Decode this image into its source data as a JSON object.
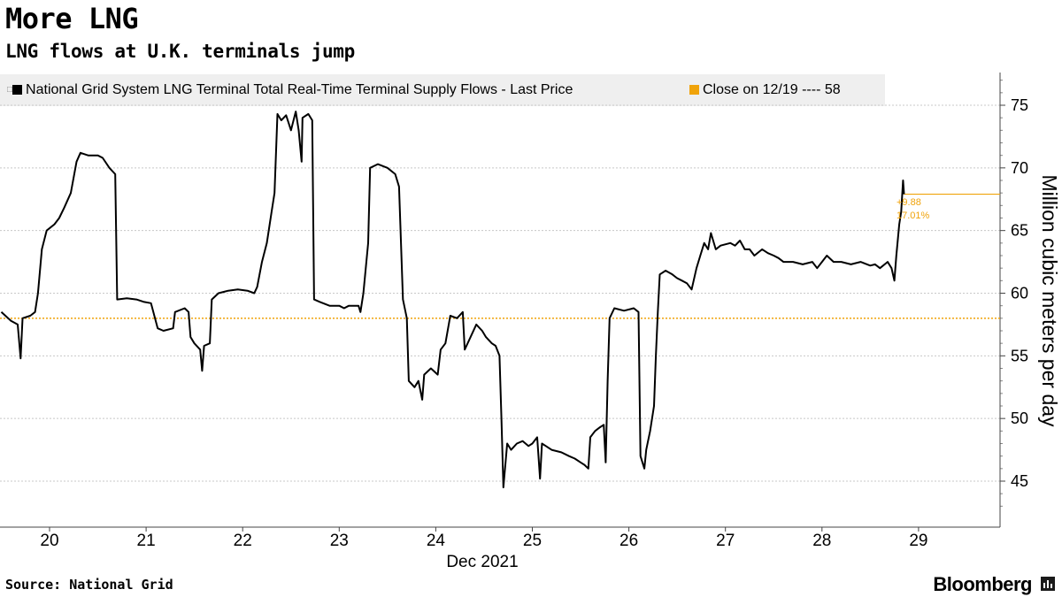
{
  "title": "More LNG",
  "subtitle": "LNG flows at U.K. terminals jump",
  "legend": {
    "series_label": "National Grid System LNG Terminal Total Real-Time Terminal Supply Flows - Last Price",
    "close_label": "Close on 12/19 ---- 58"
  },
  "annotations": {
    "change_abs": "+9.88",
    "change_pct": "17.01%"
  },
  "source": "Source:  National Grid",
  "brand": "Bloomberg",
  "colors": {
    "line": "#000000",
    "close": "#f0a30a",
    "grid": "#c8c8c8",
    "legend_bg": "#efefef"
  },
  "chart_data": {
    "type": "line",
    "title": "More LNG",
    "subtitle": "LNG flows at U.K. terminals jump",
    "ylabel": "Million cubic meters per day",
    "xlabel": "Dec 2021",
    "x_ticks": [
      "20",
      "21",
      "22",
      "23",
      "24",
      "25",
      "26",
      "27",
      "28",
      "29"
    ],
    "y_ticks": [
      45,
      50,
      55,
      60,
      65,
      70,
      75
    ],
    "ylim": [
      42,
      77
    ],
    "xlim": [
      19.5,
      29.8
    ],
    "reference_line": {
      "label": "Close on 12/19",
      "value": 58
    },
    "last_value": 67.9,
    "change": "+9.88",
    "change_pct": "17.01%",
    "series": [
      {
        "name": "National Grid System LNG Terminal Total Real-Time Terminal Supply Flows - Last Price",
        "points": [
          [
            19.5,
            58.5
          ],
          [
            19.6,
            57.8
          ],
          [
            19.67,
            57.5
          ],
          [
            19.7,
            54.8
          ],
          [
            19.72,
            58.0
          ],
          [
            19.8,
            58.2
          ],
          [
            19.85,
            58.5
          ],
          [
            19.88,
            60.0
          ],
          [
            19.92,
            63.5
          ],
          [
            19.97,
            65.0
          ],
          [
            20.05,
            65.5
          ],
          [
            20.1,
            66.0
          ],
          [
            20.15,
            66.8
          ],
          [
            20.22,
            68.0
          ],
          [
            20.28,
            70.5
          ],
          [
            20.32,
            71.2
          ],
          [
            20.4,
            71.0
          ],
          [
            20.5,
            71.0
          ],
          [
            20.55,
            70.8
          ],
          [
            20.62,
            70.0
          ],
          [
            20.68,
            69.5
          ],
          [
            20.7,
            59.5
          ],
          [
            20.8,
            59.6
          ],
          [
            20.9,
            59.5
          ],
          [
            20.98,
            59.3
          ],
          [
            21.05,
            59.2
          ],
          [
            21.12,
            57.2
          ],
          [
            21.18,
            57.0
          ],
          [
            21.28,
            57.2
          ],
          [
            21.3,
            58.5
          ],
          [
            21.4,
            58.8
          ],
          [
            21.44,
            58.5
          ],
          [
            21.46,
            56.5
          ],
          [
            21.5,
            56.0
          ],
          [
            21.56,
            55.5
          ],
          [
            21.58,
            53.8
          ],
          [
            21.6,
            55.8
          ],
          [
            21.66,
            56.0
          ],
          [
            21.68,
            59.5
          ],
          [
            21.75,
            60.0
          ],
          [
            21.85,
            60.2
          ],
          [
            21.95,
            60.3
          ],
          [
            22.05,
            60.2
          ],
          [
            22.12,
            60.0
          ],
          [
            22.15,
            60.5
          ],
          [
            22.2,
            62.5
          ],
          [
            22.25,
            64.0
          ],
          [
            22.3,
            66.5
          ],
          [
            22.33,
            68.0
          ],
          [
            22.36,
            74.3
          ],
          [
            22.4,
            73.8
          ],
          [
            22.45,
            74.2
          ],
          [
            22.5,
            73.0
          ],
          [
            22.55,
            74.5
          ],
          [
            22.58,
            73.0
          ],
          [
            22.61,
            70.5
          ],
          [
            22.62,
            74.0
          ],
          [
            22.68,
            74.3
          ],
          [
            22.72,
            73.8
          ],
          [
            22.74,
            59.5
          ],
          [
            22.8,
            59.3
          ],
          [
            22.9,
            59.0
          ],
          [
            23.0,
            59.0
          ],
          [
            23.05,
            58.8
          ],
          [
            23.1,
            59.0
          ],
          [
            23.2,
            59.0
          ],
          [
            23.22,
            58.5
          ],
          [
            23.25,
            60.0
          ],
          [
            23.3,
            64.0
          ],
          [
            23.32,
            70.0
          ],
          [
            23.4,
            70.3
          ],
          [
            23.5,
            70.0
          ],
          [
            23.58,
            69.5
          ],
          [
            23.62,
            68.5
          ],
          [
            23.66,
            59.5
          ],
          [
            23.7,
            58.0
          ],
          [
            23.72,
            53.0
          ],
          [
            23.78,
            52.5
          ],
          [
            23.82,
            53.0
          ],
          [
            23.86,
            51.5
          ],
          [
            23.88,
            53.5
          ],
          [
            23.95,
            54.0
          ],
          [
            24.02,
            53.5
          ],
          [
            24.05,
            55.5
          ],
          [
            24.1,
            56.0
          ],
          [
            24.15,
            58.2
          ],
          [
            24.22,
            58.0
          ],
          [
            24.28,
            58.5
          ],
          [
            24.3,
            55.5
          ],
          [
            24.36,
            56.5
          ],
          [
            24.42,
            57.5
          ],
          [
            24.48,
            57.0
          ],
          [
            24.52,
            56.5
          ],
          [
            24.58,
            56.0
          ],
          [
            24.62,
            55.8
          ],
          [
            24.66,
            55.0
          ],
          [
            24.68,
            50.0
          ],
          [
            24.7,
            44.5
          ],
          [
            24.74,
            48.0
          ],
          [
            24.78,
            47.5
          ],
          [
            24.84,
            48.0
          ],
          [
            24.9,
            48.2
          ],
          [
            24.96,
            47.8
          ],
          [
            25.0,
            48.0
          ],
          [
            25.05,
            48.5
          ],
          [
            25.08,
            45.2
          ],
          [
            25.1,
            48.0
          ],
          [
            25.14,
            47.8
          ],
          [
            25.2,
            47.5
          ],
          [
            25.3,
            47.3
          ],
          [
            25.38,
            47.0
          ],
          [
            25.44,
            46.8
          ],
          [
            25.5,
            46.5
          ],
          [
            25.54,
            46.3
          ],
          [
            25.58,
            46.0
          ],
          [
            25.6,
            48.5
          ],
          [
            25.65,
            49.0
          ],
          [
            25.7,
            49.3
          ],
          [
            25.74,
            49.5
          ],
          [
            25.76,
            46.5
          ],
          [
            25.78,
            53.0
          ],
          [
            25.8,
            58.0
          ],
          [
            25.85,
            58.8
          ],
          [
            25.95,
            58.6
          ],
          [
            26.05,
            58.8
          ],
          [
            26.1,
            58.5
          ],
          [
            26.12,
            47.0
          ],
          [
            26.16,
            46.0
          ],
          [
            26.18,
            47.5
          ],
          [
            26.22,
            49.0
          ],
          [
            26.26,
            51.0
          ],
          [
            26.28,
            55.0
          ],
          [
            26.3,
            58.5
          ],
          [
            26.32,
            61.5
          ],
          [
            26.38,
            61.8
          ],
          [
            26.45,
            61.5
          ],
          [
            26.5,
            61.2
          ],
          [
            26.55,
            61.0
          ],
          [
            26.6,
            60.8
          ],
          [
            26.65,
            60.3
          ],
          [
            26.7,
            62.0
          ],
          [
            26.74,
            63.0
          ],
          [
            26.78,
            64.0
          ],
          [
            26.82,
            63.5
          ],
          [
            26.85,
            64.8
          ],
          [
            26.9,
            63.5
          ],
          [
            26.95,
            63.8
          ],
          [
            27.05,
            64.0
          ],
          [
            27.1,
            63.8
          ],
          [
            27.15,
            64.2
          ],
          [
            27.2,
            63.5
          ],
          [
            27.25,
            63.5
          ],
          [
            27.3,
            63.0
          ],
          [
            27.38,
            63.5
          ],
          [
            27.44,
            63.2
          ],
          [
            27.5,
            63.0
          ],
          [
            27.55,
            62.8
          ],
          [
            27.6,
            62.5
          ],
          [
            27.7,
            62.5
          ],
          [
            27.8,
            62.3
          ],
          [
            27.9,
            62.5
          ],
          [
            27.95,
            62.0
          ],
          [
            28.0,
            62.5
          ],
          [
            28.05,
            63.0
          ],
          [
            28.12,
            62.5
          ],
          [
            28.2,
            62.5
          ],
          [
            28.3,
            62.3
          ],
          [
            28.4,
            62.5
          ],
          [
            28.5,
            62.2
          ],
          [
            28.55,
            62.3
          ],
          [
            28.6,
            62.0
          ],
          [
            28.68,
            62.5
          ],
          [
            28.72,
            62.0
          ],
          [
            28.75,
            61.0
          ],
          [
            28.77,
            63.0
          ],
          [
            28.8,
            65.5
          ],
          [
            28.82,
            66.5
          ],
          [
            28.84,
            69.0
          ],
          [
            28.85,
            67.9
          ]
        ]
      }
    ]
  }
}
